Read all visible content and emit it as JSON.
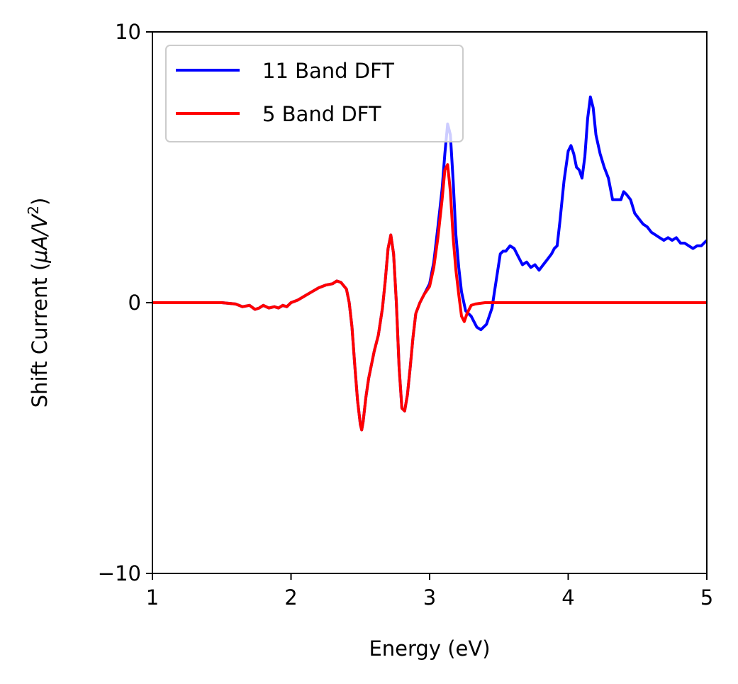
{
  "chart_data": {
    "type": "line",
    "title": "",
    "xlabel": "Energy (eV)",
    "ylabel_prefix": "Shift Current (",
    "ylabel_mu": "μ",
    "ylabel_A": "A",
    "ylabel_slash": "/",
    "ylabel_V": "V",
    "ylabel_exp": "2",
    "ylabel_suffix": ")",
    "xlim": [
      1,
      5
    ],
    "ylim": [
      -10,
      10
    ],
    "xticks": [
      1,
      2,
      3,
      4,
      5
    ],
    "xtick_labels": [
      "1",
      "2",
      "3",
      "4",
      "5"
    ],
    "yticks": [
      -10,
      0,
      10
    ],
    "ytick_labels": [
      "−10",
      "0",
      "10"
    ],
    "grid": false,
    "legend_position": "top-left",
    "series": [
      {
        "name": "11 Band DFT",
        "color": "#0000ff",
        "x": [
          1.0,
          1.5,
          1.6,
          1.65,
          1.7,
          1.74,
          1.77,
          1.8,
          1.84,
          1.88,
          1.91,
          1.94,
          1.97,
          2.0,
          2.05,
          2.1,
          2.15,
          2.2,
          2.25,
          2.3,
          2.33,
          2.36,
          2.4,
          2.42,
          2.44,
          2.46,
          2.48,
          2.5,
          2.51,
          2.52,
          2.54,
          2.56,
          2.58,
          2.6,
          2.63,
          2.66,
          2.68,
          2.7,
          2.72,
          2.74,
          2.76,
          2.78,
          2.8,
          2.82,
          2.84,
          2.86,
          2.88,
          2.9,
          2.93,
          2.96,
          3.0,
          3.03,
          3.06,
          3.09,
          3.11,
          3.13,
          3.15,
          3.17,
          3.19,
          3.21,
          3.23,
          3.26,
          3.3,
          3.34,
          3.37,
          3.41,
          3.45,
          3.48,
          3.51,
          3.53,
          3.55,
          3.58,
          3.61,
          3.64,
          3.67,
          3.7,
          3.73,
          3.76,
          3.79,
          3.82,
          3.85,
          3.88,
          3.9,
          3.92,
          3.94,
          3.97,
          4.0,
          4.02,
          4.04,
          4.06,
          4.08,
          4.1,
          4.12,
          4.14,
          4.16,
          4.18,
          4.2,
          4.23,
          4.26,
          4.29,
          4.32,
          4.35,
          4.38,
          4.4,
          4.42,
          4.45,
          4.48,
          4.51,
          4.54,
          4.57,
          4.6,
          4.63,
          4.66,
          4.69,
          4.72,
          4.75,
          4.78,
          4.81,
          4.84,
          4.87,
          4.9,
          4.93,
          4.96,
          5.0
        ],
        "values": [
          0.0,
          0.0,
          -0.05,
          -0.15,
          -0.1,
          -0.25,
          -0.2,
          -0.1,
          -0.2,
          -0.15,
          -0.2,
          -0.1,
          -0.15,
          0.0,
          0.1,
          0.25,
          0.4,
          0.55,
          0.65,
          0.7,
          0.8,
          0.75,
          0.5,
          0.0,
          -0.9,
          -2.3,
          -3.6,
          -4.5,
          -4.7,
          -4.4,
          -3.5,
          -2.8,
          -2.3,
          -1.8,
          -1.2,
          -0.2,
          0.8,
          2.0,
          2.5,
          1.8,
          0.0,
          -2.4,
          -3.9,
          -4.0,
          -3.4,
          -2.4,
          -1.3,
          -0.4,
          0.0,
          0.3,
          0.7,
          1.5,
          2.8,
          4.2,
          5.5,
          6.6,
          6.2,
          4.5,
          2.5,
          1.3,
          0.4,
          -0.3,
          -0.5,
          -0.9,
          -1.0,
          -0.8,
          -0.2,
          0.8,
          1.8,
          1.9,
          1.9,
          2.1,
          2.0,
          1.7,
          1.4,
          1.5,
          1.3,
          1.4,
          1.2,
          1.4,
          1.6,
          1.8,
          2.0,
          2.1,
          3.0,
          4.5,
          5.6,
          5.8,
          5.5,
          5.0,
          4.9,
          4.6,
          5.4,
          6.8,
          7.6,
          7.2,
          6.2,
          5.5,
          5.0,
          4.6,
          3.8,
          3.8,
          3.8,
          4.1,
          4.0,
          3.8,
          3.3,
          3.1,
          2.9,
          2.8,
          2.6,
          2.5,
          2.4,
          2.3,
          2.4,
          2.3,
          2.4,
          2.2,
          2.2,
          2.1,
          2.0,
          2.1,
          2.1,
          2.3
        ]
      },
      {
        "name": "5 Band DFT",
        "color": "#ff0000",
        "x": [
          1.0,
          1.5,
          1.6,
          1.65,
          1.7,
          1.74,
          1.77,
          1.8,
          1.84,
          1.88,
          1.91,
          1.94,
          1.97,
          2.0,
          2.05,
          2.1,
          2.15,
          2.2,
          2.25,
          2.3,
          2.33,
          2.36,
          2.4,
          2.42,
          2.44,
          2.46,
          2.48,
          2.5,
          2.51,
          2.52,
          2.54,
          2.56,
          2.58,
          2.6,
          2.63,
          2.66,
          2.68,
          2.7,
          2.72,
          2.74,
          2.76,
          2.78,
          2.8,
          2.82,
          2.84,
          2.86,
          2.88,
          2.9,
          2.93,
          2.96,
          3.0,
          3.03,
          3.06,
          3.09,
          3.11,
          3.13,
          3.15,
          3.17,
          3.19,
          3.21,
          3.23,
          3.25,
          3.27,
          3.3,
          3.33,
          3.4,
          3.5,
          4.0,
          5.0
        ],
        "values": [
          0.0,
          0.0,
          -0.05,
          -0.15,
          -0.1,
          -0.25,
          -0.2,
          -0.1,
          -0.2,
          -0.15,
          -0.2,
          -0.1,
          -0.15,
          0.0,
          0.1,
          0.25,
          0.4,
          0.55,
          0.65,
          0.7,
          0.8,
          0.75,
          0.5,
          0.0,
          -0.9,
          -2.3,
          -3.6,
          -4.5,
          -4.7,
          -4.4,
          -3.5,
          -2.8,
          -2.3,
          -1.8,
          -1.2,
          -0.2,
          0.8,
          2.0,
          2.5,
          1.8,
          0.0,
          -2.4,
          -3.9,
          -4.0,
          -3.4,
          -2.4,
          -1.3,
          -0.4,
          0.0,
          0.3,
          0.6,
          1.3,
          2.4,
          3.8,
          4.9,
          5.1,
          4.1,
          2.4,
          1.2,
          0.3,
          -0.5,
          -0.7,
          -0.4,
          -0.1,
          -0.05,
          0.0,
          0.0,
          0.0,
          0.0
        ]
      }
    ]
  }
}
